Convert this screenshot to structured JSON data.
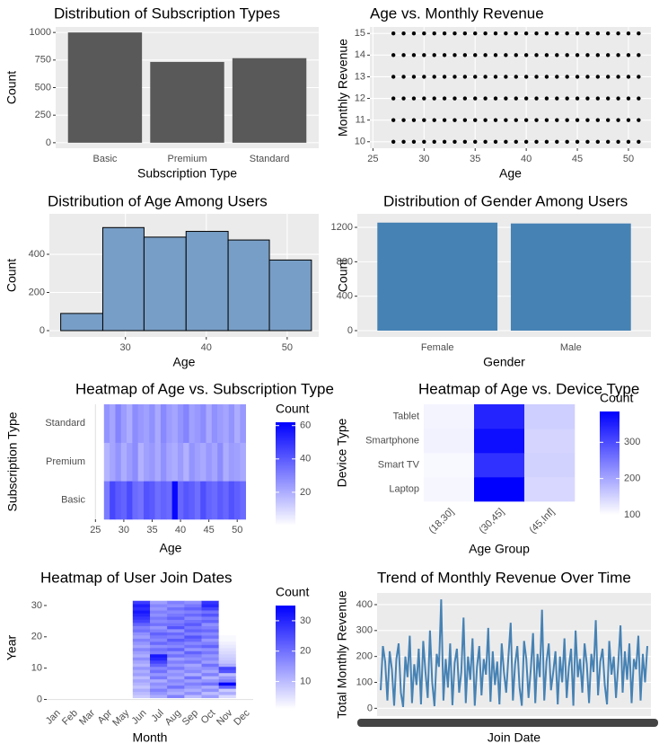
{
  "chart_data": [
    {
      "type": "bar",
      "title": "Distribution of Subscription Types",
      "x_label": "Subscription Type",
      "y_label": "Count",
      "categories": [
        "Basic",
        "Premium",
        "Standard"
      ],
      "values": [
        1000,
        733,
        767
      ],
      "color": "#595959",
      "ylim": [
        -50,
        1050
      ],
      "yticks": [
        0,
        250,
        500,
        750,
        1000
      ]
    },
    {
      "type": "scatter",
      "title": "Age vs. Monthly Revenue",
      "x_label": "Age",
      "y_label": "Monthly Revenue",
      "color": "#000000",
      "x": [
        27,
        28,
        29,
        30,
        31,
        32,
        33,
        34,
        35,
        36,
        37,
        38,
        39,
        40,
        41,
        42,
        43,
        44,
        45,
        46,
        47,
        48,
        49,
        50,
        51,
        27,
        28,
        29,
        30,
        31,
        32,
        33,
        34,
        35,
        36,
        37,
        38,
        39,
        40,
        41,
        42,
        43,
        44,
        45,
        46,
        47,
        48,
        49,
        50,
        51,
        27,
        28,
        29,
        30,
        31,
        32,
        33,
        34,
        35,
        36,
        37,
        38,
        39,
        40,
        41,
        42,
        43,
        44,
        45,
        46,
        47,
        48,
        49,
        50,
        51,
        27,
        28,
        29,
        30,
        31,
        32,
        33,
        34,
        35,
        36,
        37,
        38,
        39,
        40,
        41,
        42,
        43,
        44,
        45,
        46,
        47,
        48,
        49,
        50,
        51,
        27,
        28,
        29,
        30,
        31,
        32,
        33,
        34,
        35,
        36,
        37,
        38,
        39,
        40,
        41,
        42,
        43,
        44,
        45,
        46,
        47,
        48,
        49,
        50,
        51,
        27,
        28,
        29,
        30,
        31,
        32,
        33,
        34,
        35,
        36,
        37,
        38,
        39,
        40,
        41,
        42,
        43,
        44,
        45,
        46,
        47,
        48,
        49,
        50,
        51
      ],
      "y": [
        10,
        10,
        10,
        10,
        10,
        10,
        10,
        10,
        10,
        10,
        10,
        10,
        10,
        10,
        10,
        10,
        10,
        10,
        10,
        10,
        10,
        10,
        10,
        10,
        10,
        11,
        11,
        11,
        11,
        11,
        11,
        11,
        11,
        11,
        11,
        11,
        11,
        11,
        11,
        11,
        11,
        11,
        11,
        11,
        11,
        11,
        11,
        11,
        11,
        11,
        12,
        12,
        12,
        12,
        12,
        12,
        12,
        12,
        12,
        12,
        12,
        12,
        12,
        12,
        12,
        12,
        12,
        12,
        12,
        12,
        12,
        12,
        12,
        12,
        12,
        13,
        13,
        13,
        13,
        13,
        13,
        13,
        13,
        13,
        13,
        13,
        13,
        13,
        13,
        13,
        13,
        13,
        13,
        13,
        13,
        13,
        13,
        13,
        13,
        13,
        14,
        14,
        14,
        14,
        14,
        14,
        14,
        14,
        14,
        14,
        14,
        14,
        14,
        14,
        14,
        14,
        14,
        14,
        14,
        14,
        14,
        14,
        14,
        14,
        14,
        15,
        15,
        15,
        15,
        15,
        15,
        15,
        15,
        15,
        15,
        15,
        15,
        15,
        15,
        15,
        15,
        15,
        15,
        15,
        15,
        15,
        15,
        15,
        15,
        15
      ],
      "xlim": [
        24.7,
        52.2
      ],
      "xticks": [
        25,
        30,
        35,
        40,
        45,
        50
      ],
      "ylim": [
        9.7,
        15.3
      ],
      "yticks": [
        10,
        11,
        12,
        13,
        14,
        15
      ]
    },
    {
      "type": "histogram",
      "title": "Distribution of Age Among Users",
      "x_label": "Age",
      "y_label": "Count",
      "color": "#779ec6",
      "bins": [
        22,
        27.2,
        32.3,
        37.5,
        42.7,
        47.8,
        53
      ],
      "counts": [
        90,
        540,
        490,
        520,
        475,
        370
      ],
      "xlim": [
        20.6,
        53.9
      ],
      "xticks": [
        30,
        40,
        50
      ],
      "ylim": [
        -33,
        612
      ],
      "yticks": [
        0,
        200,
        400
      ]
    },
    {
      "type": "bar",
      "title": "Distribution of Gender Among Users",
      "x_label": "Gender",
      "y_label": "Count",
      "categories": [
        "Female",
        "Male"
      ],
      "values": [
        1255,
        1245
      ],
      "color": "#4682b4",
      "ylim": [
        -73,
        1357
      ],
      "yticks": [
        0,
        400,
        800,
        1200
      ]
    },
    {
      "type": "heatmap",
      "title": "Heatmap of Age vs. Subscription Type",
      "x_label": "Age",
      "y_label": "Subscription Type",
      "legend_title": "Count",
      "x": [
        27,
        28,
        29,
        30,
        31,
        32,
        33,
        34,
        35,
        36,
        37,
        38,
        39,
        40,
        41,
        42,
        43,
        44,
        45,
        46,
        47,
        48,
        49,
        50,
        51
      ],
      "y": [
        "Basic",
        "Premium",
        "Standard"
      ],
      "z": [
        [
          32,
          45,
          40,
          38,
          44,
          36,
          34,
          42,
          40,
          35,
          38,
          36,
          60,
          37,
          41,
          39,
          35,
          43,
          38,
          36,
          40,
          37,
          42,
          39,
          36
        ],
        [
          18,
          22,
          26,
          20,
          24,
          28,
          19,
          23,
          25,
          21,
          27,
          22,
          20,
          24,
          19,
          26,
          23,
          21,
          25,
          22,
          28,
          20,
          24,
          23,
          21
        ],
        [
          26,
          22,
          30,
          24,
          20,
          28,
          25,
          23,
          27,
          21,
          29,
          24,
          22,
          26,
          30,
          23,
          25,
          28,
          21,
          27,
          24,
          22,
          26,
          20,
          25
        ]
      ],
      "xlim": [
        24,
        52.5
      ],
      "xticks": [
        25,
        30,
        35,
        40,
        45,
        50
      ],
      "low_color": "#ffffff",
      "high_color": "#0000ff",
      "colorbar_lim": [
        0,
        62
      ],
      "colorbar_ticks": [
        20,
        40,
        60
      ]
    },
    {
      "type": "heatmap",
      "title": "Heatmap of Age vs. Device Type",
      "x_label": "Age Group",
      "y_label": "Device Type",
      "legend_title": "Count",
      "x": [
        "(18,30]",
        "(30,45]",
        "(45,Inf]"
      ],
      "y": [
        "Laptop",
        "Smart TV",
        "Smartphone",
        "Tablet"
      ],
      "z": [
        [
          110,
          385,
          145
        ],
        [
          108,
          330,
          150
        ],
        [
          115,
          370,
          148
        ],
        [
          112,
          345,
          155
        ]
      ],
      "low_color": "#ffffff",
      "high_color": "#0000ff",
      "colorbar_lim": [
        100,
        385
      ],
      "colorbar_ticks": [
        100,
        200,
        300
      ]
    },
    {
      "type": "heatmap",
      "title": "Heatmap of User Join Dates",
      "x_label": "Month",
      "y_label": "Year",
      "legend_title": "Count",
      "x": [
        "Jan",
        "Feb",
        "Mar",
        "Apr",
        "May",
        "Jun",
        "Jul",
        "Aug",
        "Sep",
        "Oct",
        "Nov",
        "Dec"
      ],
      "y": [
        1,
        2,
        3,
        4,
        5,
        6,
        7,
        8,
        9,
        10,
        11,
        12,
        13,
        14,
        15,
        16,
        17,
        18,
        19,
        20,
        21,
        22,
        23,
        24,
        25,
        26,
        27,
        28,
        29,
        30,
        31
      ],
      "z": [
        [
          1,
          0,
          0,
          1,
          0,
          8,
          12,
          18,
          10,
          14,
          6,
          0
        ],
        [
          0,
          1,
          0,
          0,
          1,
          10,
          15,
          12,
          16,
          10,
          12,
          1
        ],
        [
          0,
          0,
          1,
          0,
          0,
          12,
          18,
          14,
          12,
          16,
          8,
          0
        ],
        [
          1,
          0,
          0,
          1,
          0,
          9,
          14,
          20,
          15,
          12,
          22,
          0
        ],
        [
          0,
          0,
          0,
          0,
          1,
          11,
          16,
          15,
          18,
          20,
          35,
          1
        ],
        [
          0,
          1,
          0,
          0,
          0,
          13,
          12,
          17,
          14,
          15,
          18,
          0
        ],
        [
          1,
          0,
          0,
          1,
          0,
          10,
          19,
          13,
          20,
          11,
          15,
          0
        ],
        [
          0,
          0,
          1,
          0,
          0,
          14,
          15,
          16,
          12,
          18,
          10,
          1
        ],
        [
          0,
          0,
          0,
          0,
          1,
          12,
          20,
          14,
          17,
          13,
          24,
          0
        ],
        [
          1,
          0,
          0,
          0,
          0,
          15,
          17,
          19,
          15,
          16,
          26,
          0
        ],
        [
          0,
          1,
          0,
          1,
          0,
          11,
          22,
          15,
          13,
          20,
          12,
          0
        ],
        [
          0,
          0,
          0,
          0,
          1,
          13,
          26,
          18,
          19,
          14,
          9,
          1
        ],
        [
          1,
          0,
          1,
          0,
          0,
          16,
          30,
          14,
          16,
          17,
          8,
          0
        ],
        [
          0,
          0,
          0,
          0,
          0,
          12,
          32,
          20,
          18,
          15,
          7,
          0
        ],
        [
          0,
          1,
          0,
          1,
          1,
          14,
          18,
          16,
          22,
          19,
          6,
          0
        ],
        [
          1,
          0,
          0,
          0,
          0,
          17,
          20,
          22,
          15,
          16,
          5,
          1
        ],
        [
          0,
          0,
          1,
          0,
          0,
          13,
          16,
          17,
          20,
          22,
          4,
          0
        ],
        [
          0,
          0,
          0,
          1,
          1,
          15,
          21,
          19,
          17,
          18,
          3,
          0
        ],
        [
          1,
          1,
          0,
          0,
          0,
          18,
          17,
          23,
          21,
          15,
          2,
          0
        ],
        [
          0,
          0,
          0,
          0,
          0,
          14,
          19,
          18,
          24,
          20,
          2,
          1
        ],
        [
          0,
          0,
          1,
          0,
          1,
          16,
          22,
          21,
          18,
          17,
          1,
          0
        ],
        [
          1,
          0,
          0,
          1,
          0,
          20,
          18,
          16,
          22,
          21,
          1,
          0
        ],
        [
          0,
          1,
          0,
          0,
          0,
          18,
          15,
          24,
          19,
          18,
          1,
          0
        ],
        [
          0,
          0,
          0,
          0,
          1,
          22,
          20,
          20,
          23,
          16,
          0,
          1
        ],
        [
          1,
          0,
          1,
          0,
          0,
          26,
          17,
          18,
          20,
          22,
          0,
          0
        ],
        [
          0,
          0,
          0,
          1,
          0,
          28,
          19,
          22,
          17,
          19,
          0,
          0
        ],
        [
          0,
          1,
          0,
          0,
          1,
          30,
          16,
          19,
          21,
          24,
          0,
          0
        ],
        [
          1,
          0,
          0,
          0,
          0,
          32,
          18,
          17,
          18,
          20,
          0,
          1
        ],
        [
          0,
          0,
          1,
          0,
          0,
          29,
          15,
          20,
          22,
          26,
          0,
          0
        ],
        [
          0,
          0,
          0,
          1,
          0,
          31,
          17,
          16,
          19,
          30,
          0,
          0
        ],
        [
          1,
          0,
          0,
          0,
          1,
          27,
          14,
          18,
          16,
          28,
          0,
          0
        ]
      ],
      "ylim": [
        -1,
        34
      ],
      "yticks": [
        0,
        10,
        20,
        30
      ],
      "low_color": "#ffffff",
      "high_color": "#0000ff",
      "colorbar_lim": [
        1,
        35
      ],
      "colorbar_ticks": [
        10,
        20,
        30
      ]
    },
    {
      "type": "line",
      "title": "Trend of Monthly Revenue Over Time",
      "x_label": "Join Date",
      "y_label": "Total Monthly Revenue",
      "color": "#4682b4",
      "values": [
        70,
        240,
        180,
        30,
        220,
        150,
        10,
        190,
        250,
        60,
        5,
        200,
        120,
        280,
        20,
        170,
        90,
        230,
        15,
        260,
        140,
        40,
        300,
        100,
        8,
        210,
        160,
        420,
        30,
        190,
        80,
        250,
        12,
        175,
        230,
        60,
        140,
        350,
        20,
        200,
        110,
        270,
        10,
        160,
        240,
        50,
        190,
        130,
        310,
        25,
        220,
        90,
        180,
        15,
        250,
        140,
        60,
        200,
        330,
        30,
        170,
        240,
        80,
        10,
        260,
        190,
        40,
        150,
        290,
        20,
        210,
        120,
        380,
        30,
        180,
        250,
        70,
        140,
        220,
        15,
        200,
        100,
        270,
        40,
        160,
        230,
        10,
        300,
        120,
        190,
        60,
        250,
        170,
        20,
        210,
        140,
        340,
        50,
        180,
        230,
        90,
        15,
        260,
        130,
        200,
        40,
        170,
        320,
        60,
        220,
        110,
        250,
        20,
        190,
        150,
        280,
        30,
        210,
        100,
        240
      ],
      "ylim": [
        -30,
        445
      ],
      "yticks": [
        0,
        100,
        200,
        300,
        400
      ]
    }
  ]
}
